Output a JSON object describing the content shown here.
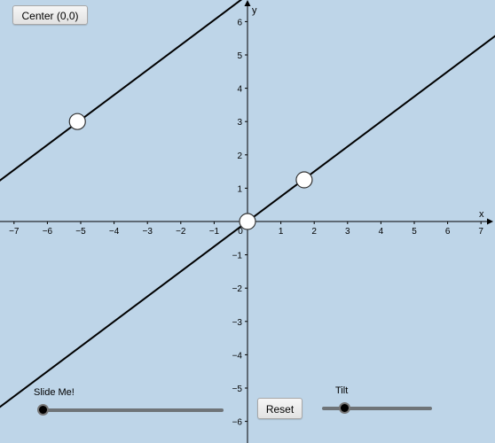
{
  "toolbar": {
    "center_label": "Center (0,0)",
    "reset_label": "Reset"
  },
  "sliders": [
    {
      "label": "Slide Me!",
      "value": 0
    },
    {
      "label": "Tilt",
      "value": 0.2
    }
  ],
  "chart_data": {
    "type": "line",
    "xlabel": "x",
    "ylabel": "y",
    "xlim": [
      -7.4,
      7.4
    ],
    "ylim": [
      -6.5,
      6.5
    ],
    "x_ticks": [
      -7,
      -6,
      -5,
      -4,
      -3,
      -2,
      -1,
      0,
      1,
      2,
      3,
      4,
      5,
      6,
      7
    ],
    "y_ticks": [
      -6,
      -5,
      -4,
      -3,
      -2,
      -1,
      1,
      2,
      3,
      4,
      5,
      6
    ],
    "series": [
      {
        "slope": 0.75,
        "intercept": 6.8,
        "points": [
          [
            -5.1,
            3.0
          ]
        ]
      },
      {
        "slope": 0.75,
        "intercept": 0.0,
        "points": [
          [
            0,
            0
          ],
          [
            1.7,
            1.25
          ]
        ]
      }
    ],
    "colors": {
      "background": "#bed5e8",
      "line": "#000000",
      "point_fill": "#ffffff"
    }
  }
}
